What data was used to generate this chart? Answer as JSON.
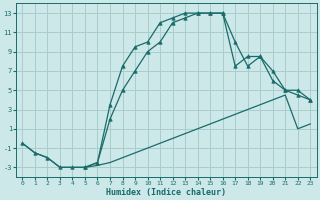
{
  "xlabel": "Humidex (Indice chaleur)",
  "bg_color": "#cce8e8",
  "grid_color": "#aacccc",
  "line_color": "#1a6b6b",
  "line1_x": [
    0,
    1,
    2,
    3,
    4,
    5,
    6,
    7,
    8,
    9,
    10,
    11,
    12,
    13,
    14,
    15,
    16,
    17,
    18,
    19,
    20,
    21,
    22,
    23
  ],
  "line1_y": [
    -0.5,
    -1.5,
    -2.0,
    -3.0,
    -3.0,
    -3.0,
    -2.5,
    3.5,
    7.5,
    9.5,
    10.0,
    12.0,
    12.5,
    13.0,
    13.0,
    13.0,
    13.0,
    10.0,
    7.5,
    8.5,
    6.0,
    5.0,
    4.5,
    4.0
  ],
  "line2_x": [
    0,
    1,
    2,
    3,
    4,
    5,
    6,
    7,
    8,
    9,
    10,
    11,
    12,
    13,
    14,
    15,
    16,
    17,
    18,
    19,
    20,
    21,
    22,
    23
  ],
  "line2_y": [
    -0.5,
    -1.5,
    -2.0,
    -3.0,
    -3.0,
    -3.0,
    -2.8,
    -2.5,
    -2.0,
    -1.5,
    -1.0,
    -0.5,
    0.0,
    0.5,
    1.0,
    1.5,
    2.0,
    2.5,
    3.0,
    3.5,
    4.0,
    4.5,
    1.0,
    1.5
  ],
  "line3_x": [
    5,
    6,
    7,
    8,
    9,
    10,
    11,
    12,
    13,
    14,
    15,
    16,
    17,
    18,
    19,
    20,
    21,
    22,
    23
  ],
  "line3_y": [
    -3.0,
    -2.5,
    2.0,
    5.0,
    7.0,
    9.0,
    10.0,
    12.0,
    12.5,
    13.0,
    13.0,
    13.0,
    7.5,
    8.5,
    8.5,
    7.0,
    5.0,
    5.0,
    4.0
  ],
  "xlim": [
    -0.5,
    23.5
  ],
  "ylim": [
    -4.0,
    14.0
  ],
  "yticks": [
    -3,
    -1,
    1,
    3,
    5,
    7,
    9,
    11,
    13
  ],
  "xticks": [
    0,
    1,
    2,
    3,
    4,
    5,
    6,
    7,
    8,
    9,
    10,
    11,
    12,
    13,
    14,
    15,
    16,
    17,
    18,
    19,
    20,
    21,
    22,
    23
  ]
}
